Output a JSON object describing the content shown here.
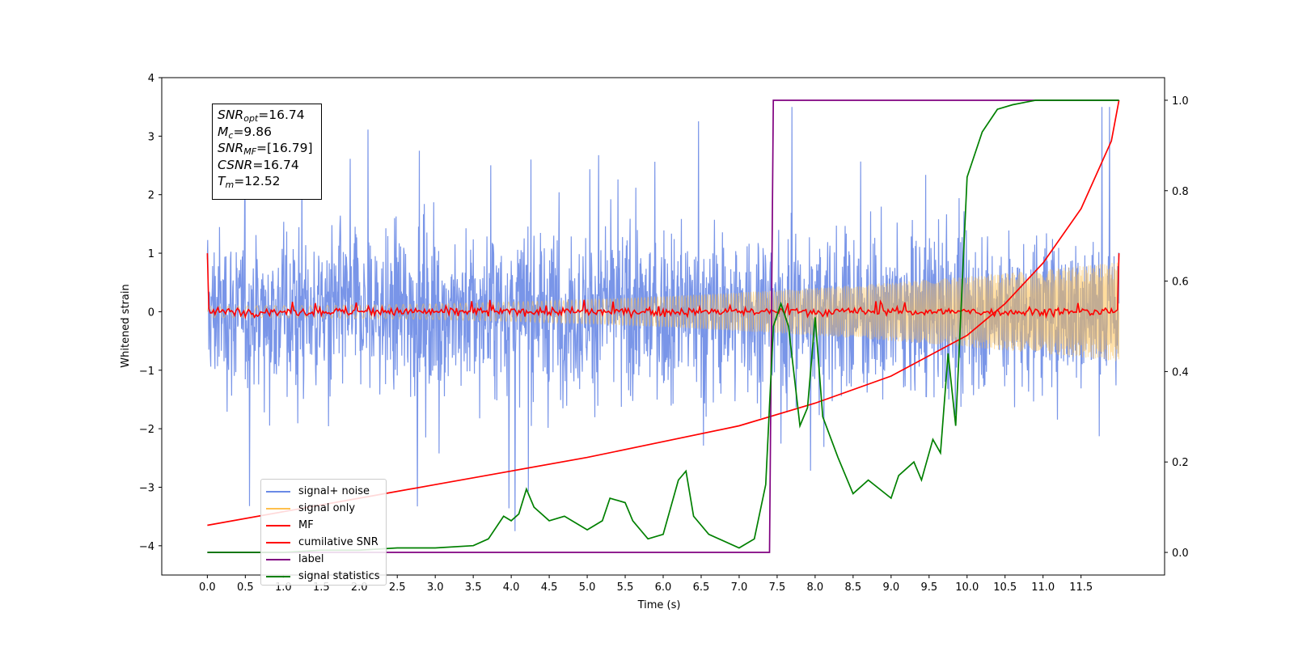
{
  "chart_data": {
    "type": "line",
    "xlabel": "Time (s)",
    "ylabel": "Whitened strain",
    "xlim": [
      -0.6,
      12.6
    ],
    "ylim": [
      -4.5,
      4.0
    ],
    "y2lim": [
      -0.05,
      1.05
    ],
    "x_ticks": [
      "0.0",
      "0.5",
      "1.0",
      "1.5",
      "2.0",
      "2.5",
      "3.0",
      "3.5",
      "4.0",
      "4.5",
      "5.0",
      "5.5",
      "6.0",
      "6.5",
      "7.0",
      "7.5",
      "8.0",
      "8.5",
      "9.0",
      "9.5",
      "10.0",
      "10.5",
      "11.0",
      "11.5"
    ],
    "y_ticks": [
      "4",
      "3",
      "2",
      "1",
      "0",
      "−1",
      "−2",
      "−3",
      "−4"
    ],
    "y2_ticks": [
      "1.0",
      "0.8",
      "0.6",
      "0.4",
      "0.2",
      "0.0"
    ],
    "legend_position": "lower-left",
    "annotations": {
      "snr_opt": "=16.74",
      "mc": "=9.86",
      "snr_mf": "=[16.79]",
      "csnr": "=16.74",
      "tm": "=12.52"
    },
    "series": [
      {
        "name": "signal+ noise",
        "color": "#6a8ae6",
        "axis": "left",
        "note_range": [
          -3.0,
          3.5
        ]
      },
      {
        "name": "signal only",
        "color": "#ffc04d",
        "axis": "left",
        "amplitude_start": 0.1,
        "amplitude_end": 0.85
      },
      {
        "name": "MF",
        "color": "#ff0000",
        "axis": "left",
        "baseline": 0.0,
        "start_value": 1.0,
        "end_value": 1.0
      },
      {
        "name": "cumilative SNR",
        "color": "#ff0000",
        "axis": "right",
        "x": [
          0,
          1,
          2,
          3,
          4,
          5,
          6,
          7,
          8,
          9,
          10,
          10.5,
          11,
          11.5,
          11.9,
          12.0
        ],
        "y": [
          0.06,
          0.09,
          0.12,
          0.15,
          0.18,
          0.21,
          0.245,
          0.28,
          0.33,
          0.39,
          0.48,
          0.55,
          0.64,
          0.76,
          0.91,
          1.0
        ]
      },
      {
        "name": "label",
        "color": "#800080",
        "axis": "right",
        "x": [
          0,
          7.4,
          7.45,
          12.0
        ],
        "y": [
          0.0,
          0.0,
          1.0,
          1.0
        ]
      },
      {
        "name": "signal statistics",
        "color": "#008000",
        "axis": "right",
        "x": [
          0,
          0.5,
          1.0,
          1.5,
          2.0,
          2.5,
          3.0,
          3.5,
          3.7,
          3.9,
          4.0,
          4.1,
          4.2,
          4.3,
          4.5,
          4.7,
          5.0,
          5.2,
          5.3,
          5.5,
          5.6,
          5.8,
          6.0,
          6.2,
          6.3,
          6.4,
          6.6,
          7.0,
          7.2,
          7.35,
          7.45,
          7.55,
          7.65,
          7.8,
          7.9,
          8.0,
          8.1,
          8.3,
          8.5,
          8.7,
          9.0,
          9.1,
          9.3,
          9.4,
          9.55,
          9.65,
          9.75,
          9.85,
          10.0,
          10.2,
          10.4,
          10.6,
          10.9,
          11.2,
          11.5,
          11.8,
          12.0
        ],
        "y": [
          0.0,
          0.0,
          0.0,
          0.005,
          0.005,
          0.01,
          0.01,
          0.015,
          0.03,
          0.08,
          0.07,
          0.085,
          0.14,
          0.1,
          0.07,
          0.08,
          0.05,
          0.07,
          0.12,
          0.11,
          0.07,
          0.03,
          0.04,
          0.16,
          0.18,
          0.08,
          0.04,
          0.01,
          0.03,
          0.15,
          0.5,
          0.55,
          0.5,
          0.28,
          0.32,
          0.52,
          0.3,
          0.21,
          0.13,
          0.16,
          0.12,
          0.17,
          0.2,
          0.16,
          0.25,
          0.22,
          0.44,
          0.28,
          0.83,
          0.93,
          0.98,
          0.99,
          1.0,
          1.0,
          1.0,
          1.0,
          1.0
        ]
      }
    ]
  }
}
